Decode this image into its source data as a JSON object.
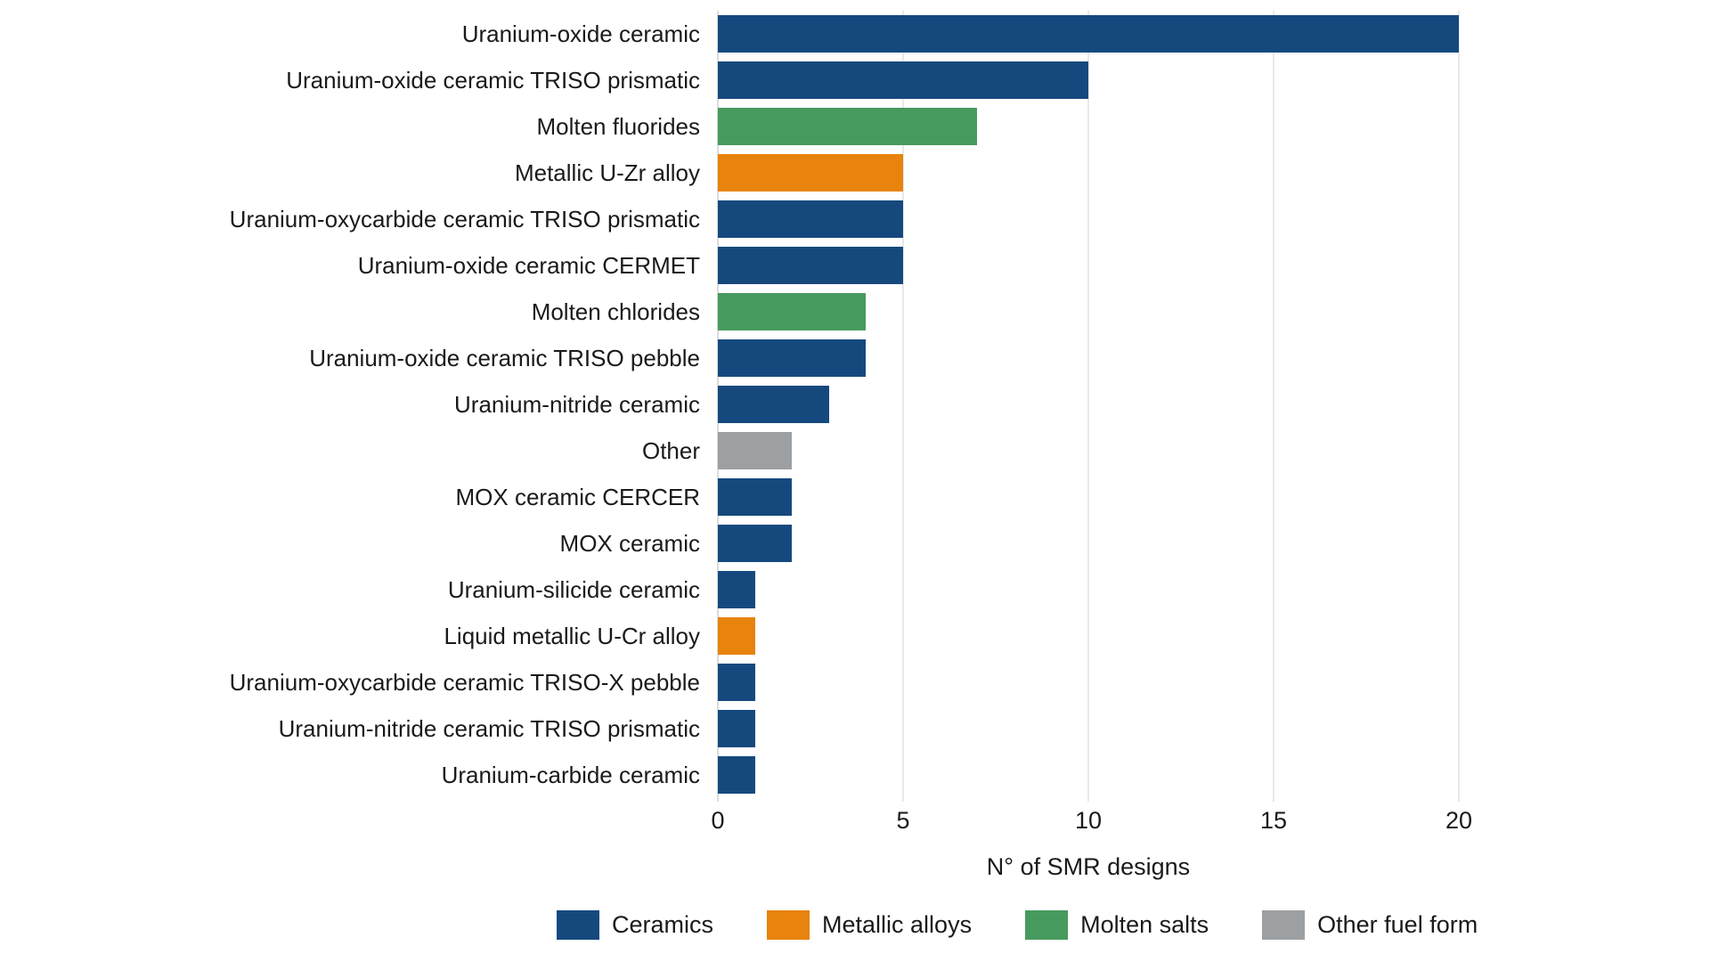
{
  "chart_data": {
    "type": "bar",
    "orientation": "horizontal",
    "xlabel": "N° of SMR designs",
    "xlim": [
      0,
      20
    ],
    "x_ticks": [
      0,
      5,
      10,
      15,
      20
    ],
    "grid": "vertical-light",
    "legend_position": "bottom",
    "bars": [
      {
        "label": "Uranium-oxide ceramic",
        "value": 20,
        "category": "Ceramics"
      },
      {
        "label": "Uranium-oxide ceramic TRISO prismatic",
        "value": 10,
        "category": "Ceramics"
      },
      {
        "label": "Molten fluorides",
        "value": 7,
        "category": "Molten salts"
      },
      {
        "label": "Metallic U-Zr alloy",
        "value": 5,
        "category": "Metallic alloys"
      },
      {
        "label": "Uranium-oxycarbide ceramic TRISO prismatic",
        "value": 5,
        "category": "Ceramics"
      },
      {
        "label": "Uranium-oxide ceramic CERMET",
        "value": 5,
        "category": "Ceramics"
      },
      {
        "label": "Molten chlorides",
        "value": 4,
        "category": "Molten salts"
      },
      {
        "label": "Uranium-oxide ceramic TRISO pebble",
        "value": 4,
        "category": "Ceramics"
      },
      {
        "label": "Uranium-nitride ceramic",
        "value": 3,
        "category": "Ceramics"
      },
      {
        "label": "Other",
        "value": 2,
        "category": "Other fuel form"
      },
      {
        "label": "MOX ceramic CERCER",
        "value": 2,
        "category": "Ceramics"
      },
      {
        "label": "MOX ceramic",
        "value": 2,
        "category": "Ceramics"
      },
      {
        "label": "Uranium-silicide ceramic",
        "value": 1,
        "category": "Ceramics"
      },
      {
        "label": "Liquid metallic U-Cr alloy",
        "value": 1,
        "category": "Metallic alloys"
      },
      {
        "label": "Uranium-oxycarbide ceramic TRISO-X pebble",
        "value": 1,
        "category": "Ceramics"
      },
      {
        "label": "Uranium-nitride ceramic TRISO prismatic",
        "value": 1,
        "category": "Ceramics"
      },
      {
        "label": "Uranium-carbide ceramic",
        "value": 1,
        "category": "Ceramics"
      }
    ],
    "legend": [
      {
        "label": "Ceramics",
        "color": "#15497E"
      },
      {
        "label": "Metallic alloys",
        "color": "#E8830D"
      },
      {
        "label": "Molten salts",
        "color": "#479A5E"
      },
      {
        "label": "Other fuel form",
        "color": "#9DA0A3"
      }
    ]
  }
}
